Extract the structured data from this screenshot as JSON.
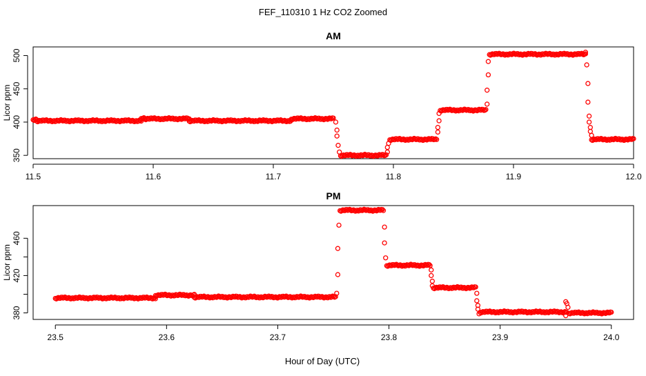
{
  "figure": {
    "title": "FEF_110310  1 Hz CO2 Zoomed",
    "xlabel": "Hour of Day (UTC)"
  },
  "chart_data": [
    {
      "type": "scatter",
      "title": "AM",
      "xlabel": "Hour of Day (UTC)",
      "ylabel": "Licor ppm",
      "xlim": [
        11.5,
        12.0
      ],
      "ylim": [
        345,
        513
      ],
      "x_ticks": [
        "11.5",
        "11.6",
        "11.7",
        "11.8",
        "11.9",
        "12.0"
      ],
      "y_ticks": [
        "350",
        "400",
        "450",
        "500"
      ],
      "marker": "open-circle",
      "color": "#ff0000",
      "segments": [
        {
          "x": [
            11.5,
            11.503
          ],
          "y": [
            404,
            404
          ]
        },
        {
          "x": [
            11.503,
            11.59
          ],
          "y": [
            402,
            402
          ]
        },
        {
          "x": [
            11.59,
            11.593
          ],
          "y": [
            406,
            406
          ]
        },
        {
          "x": [
            11.593,
            11.63
          ],
          "y": [
            405,
            405
          ]
        },
        {
          "x": [
            11.63,
            11.715
          ],
          "y": [
            402,
            402
          ]
        },
        {
          "x": [
            11.715,
            11.75
          ],
          "y": [
            405,
            405
          ]
        },
        {
          "x": [
            11.756,
            11.794
          ],
          "y": [
            350,
            350
          ]
        },
        {
          "x": [
            11.797,
            11.836
          ],
          "y": [
            374,
            374
          ]
        },
        {
          "x": [
            11.839,
            11.877
          ],
          "y": [
            418,
            418
          ]
        },
        {
          "x": [
            11.88,
            11.96
          ],
          "y": [
            502,
            502
          ]
        },
        {
          "x": [
            11.965,
            12.0
          ],
          "y": [
            374,
            374
          ]
        }
      ],
      "transition_points": [
        {
          "x": 11.752,
          "y": 400
        },
        {
          "x": 11.753,
          "y": 388
        },
        {
          "x": 11.753,
          "y": 379
        },
        {
          "x": 11.754,
          "y": 365
        },
        {
          "x": 11.755,
          "y": 355
        },
        {
          "x": 11.795,
          "y": 355
        },
        {
          "x": 11.795,
          "y": 362
        },
        {
          "x": 11.796,
          "y": 368
        },
        {
          "x": 11.837,
          "y": 385
        },
        {
          "x": 11.837,
          "y": 392
        },
        {
          "x": 11.838,
          "y": 402
        },
        {
          "x": 11.838,
          "y": 413
        },
        {
          "x": 11.878,
          "y": 427
        },
        {
          "x": 11.878,
          "y": 448
        },
        {
          "x": 11.879,
          "y": 471
        },
        {
          "x": 11.879,
          "y": 491
        },
        {
          "x": 11.961,
          "y": 486
        },
        {
          "x": 11.962,
          "y": 458
        },
        {
          "x": 11.962,
          "y": 430
        },
        {
          "x": 11.963,
          "y": 409
        },
        {
          "x": 11.963,
          "y": 400
        },
        {
          "x": 11.964,
          "y": 392
        },
        {
          "x": 11.964,
          "y": 386
        },
        {
          "x": 11.965,
          "y": 380
        },
        {
          "x": 11.96,
          "y": 505
        }
      ]
    },
    {
      "type": "scatter",
      "title": "PM",
      "xlabel": "Hour of Day (UTC)",
      "ylabel": "Licor ppm",
      "xlim": [
        23.48,
        24.02
      ],
      "ylim": [
        373,
        495
      ],
      "x_ticks": [
        "23.5",
        "23.6",
        "23.7",
        "23.8",
        "23.9",
        "24.0"
      ],
      "y_ticks": [
        "380",
        "400",
        "420",
        "440",
        "460"
      ],
      "y_tick_labels_shown": [
        "380",
        "420",
        "460"
      ],
      "marker": "open-circle",
      "color": "#ff0000",
      "segments": [
        {
          "x": [
            23.5,
            23.59
          ],
          "y": [
            396,
            396
          ]
        },
        {
          "x": [
            23.59,
            23.625
          ],
          "y": [
            399,
            399
          ]
        },
        {
          "x": [
            23.625,
            23.752
          ],
          "y": [
            397,
            397
          ]
        },
        {
          "x": [
            23.756,
            23.795
          ],
          "y": [
            490,
            490
          ]
        },
        {
          "x": [
            23.798,
            23.837
          ],
          "y": [
            431,
            431
          ]
        },
        {
          "x": [
            23.84,
            23.878
          ],
          "y": [
            407,
            407
          ]
        },
        {
          "x": [
            23.882,
            23.96
          ],
          "y": [
            381,
            381
          ]
        },
        {
          "x": [
            23.962,
            24.0
          ],
          "y": [
            380,
            380
          ]
        }
      ],
      "transition_points": [
        {
          "x": 23.753,
          "y": 401
        },
        {
          "x": 23.754,
          "y": 421
        },
        {
          "x": 23.754,
          "y": 449
        },
        {
          "x": 23.755,
          "y": 474
        },
        {
          "x": 23.796,
          "y": 472
        },
        {
          "x": 23.796,
          "y": 455
        },
        {
          "x": 23.797,
          "y": 439
        },
        {
          "x": 23.838,
          "y": 426
        },
        {
          "x": 23.838,
          "y": 420
        },
        {
          "x": 23.839,
          "y": 414
        },
        {
          "x": 23.839,
          "y": 409
        },
        {
          "x": 23.879,
          "y": 401
        },
        {
          "x": 23.879,
          "y": 393
        },
        {
          "x": 23.88,
          "y": 388
        },
        {
          "x": 23.88,
          "y": 384
        },
        {
          "x": 23.881,
          "y": 379
        },
        {
          "x": 23.959,
          "y": 377
        },
        {
          "x": 23.959,
          "y": 392
        },
        {
          "x": 23.96,
          "y": 390
        },
        {
          "x": 23.961,
          "y": 386
        }
      ]
    }
  ]
}
